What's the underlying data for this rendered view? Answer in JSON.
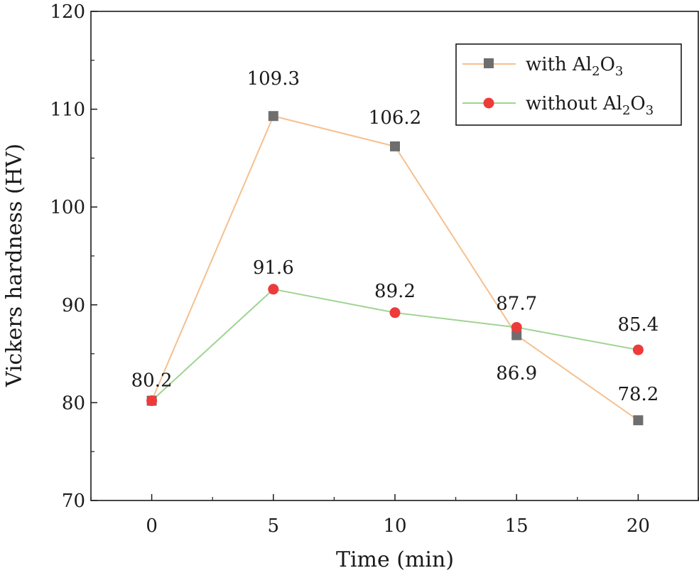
{
  "chart_data": {
    "type": "line",
    "title": "",
    "xlabel": "Time (min)",
    "ylabel": "Vickers hardness (HV)",
    "x": [
      0,
      5,
      10,
      15,
      20
    ],
    "x_ticks": [
      "0",
      "5",
      "10",
      "15",
      "20"
    ],
    "xlim": [
      -2.5,
      22.5
    ],
    "ylim": [
      70,
      120
    ],
    "y_ticks": [
      "70",
      "80",
      "90",
      "100",
      "110",
      "120"
    ],
    "grid": false,
    "legend_position": "top-right",
    "series": [
      {
        "name": "with Al2O3",
        "legend": {
          "prefix": "with Al",
          "sub1": "2",
          "mid": "O",
          "sub2": "3"
        },
        "marker": "square",
        "line_color": "#f5c08e",
        "marker_color": "#6e6e6e",
        "values": [
          80.2,
          109.3,
          106.2,
          86.9,
          78.2
        ],
        "labels": [
          "80.2",
          "109.3",
          "106.2",
          "86.9",
          "78.2"
        ]
      },
      {
        "name": "without Al2O3",
        "legend": {
          "prefix": "without Al",
          "sub1": "2",
          "mid": "O",
          "sub2": "3"
        },
        "marker": "circle",
        "line_color": "#9fd493",
        "marker_color": "#ee3a3a",
        "values": [
          80.2,
          91.6,
          89.2,
          87.7,
          85.4
        ],
        "labels": [
          "80.2",
          "91.6",
          "89.2",
          "87.7",
          "85.4"
        ]
      }
    ]
  }
}
